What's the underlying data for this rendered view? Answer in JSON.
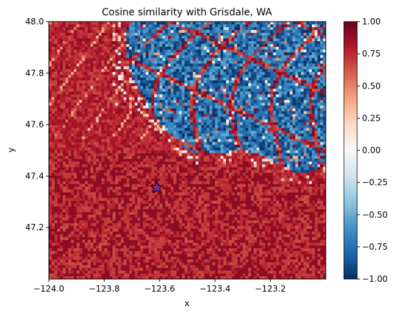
{
  "chart_data": {
    "type": "heatmap",
    "title": "Cosine similarity with Grisdale, WA",
    "xlabel": "x",
    "ylabel": "y",
    "xlim": [
      -124.0,
      -123.0
    ],
    "ylim": [
      47.0,
      48.0
    ],
    "x_ticks": [
      -124.0,
      -123.8,
      -123.6,
      -123.4,
      -123.2
    ],
    "x_tick_labels": [
      "−124.0",
      "−123.8",
      "−123.6",
      "−123.4",
      "−123.2"
    ],
    "y_ticks": [
      47.2,
      47.4,
      47.6,
      47.8,
      48.0
    ],
    "y_tick_labels": [
      "47.2",
      "47.4",
      "47.6",
      "47.8",
      "48.0"
    ],
    "colormap": "RdBu_r",
    "colorbar": {
      "vmin": -1.0,
      "vmax": 1.0,
      "ticks": [
        -1.0,
        -0.75,
        -0.5,
        -0.25,
        0.0,
        0.25,
        0.5,
        0.75,
        1.0
      ],
      "tick_labels": [
        "−1.00",
        "−0.75",
        "−0.50",
        "−0.25",
        "0.00",
        "0.25",
        "0.50",
        "0.75",
        "1.00"
      ]
    },
    "marker": {
      "x": -123.61,
      "y": 47.355,
      "shape": "star",
      "color": "#7b2a9a"
    },
    "description_values": {
      "low_region_value": 0.9,
      "mountain_region_value": -0.8
    }
  }
}
